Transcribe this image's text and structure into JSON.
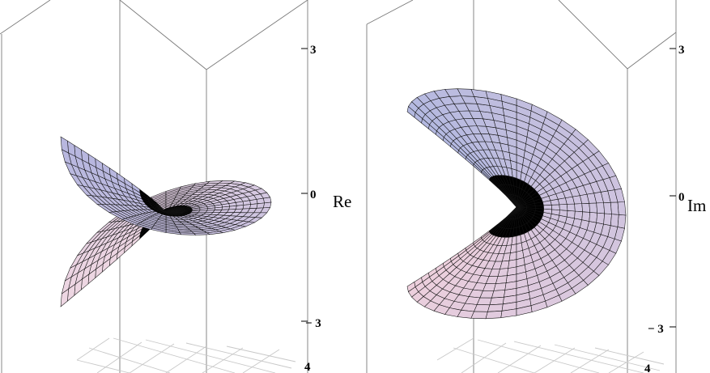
{
  "panels": [
    {
      "axis_label": "Re",
      "ticks": [
        "3",
        "0",
        "− 3",
        "4"
      ],
      "colors": {
        "top": "#b7b7df",
        "bottom": "#eed6e2",
        "throat": "#a38ab0"
      }
    },
    {
      "axis_label": "Im",
      "ticks": [
        "3",
        "0",
        "− 3",
        "4"
      ],
      "colors": {
        "top": "#eed0dd",
        "bottom": "#b2b8e0",
        "throat": "#9a80a8"
      }
    }
  ]
}
